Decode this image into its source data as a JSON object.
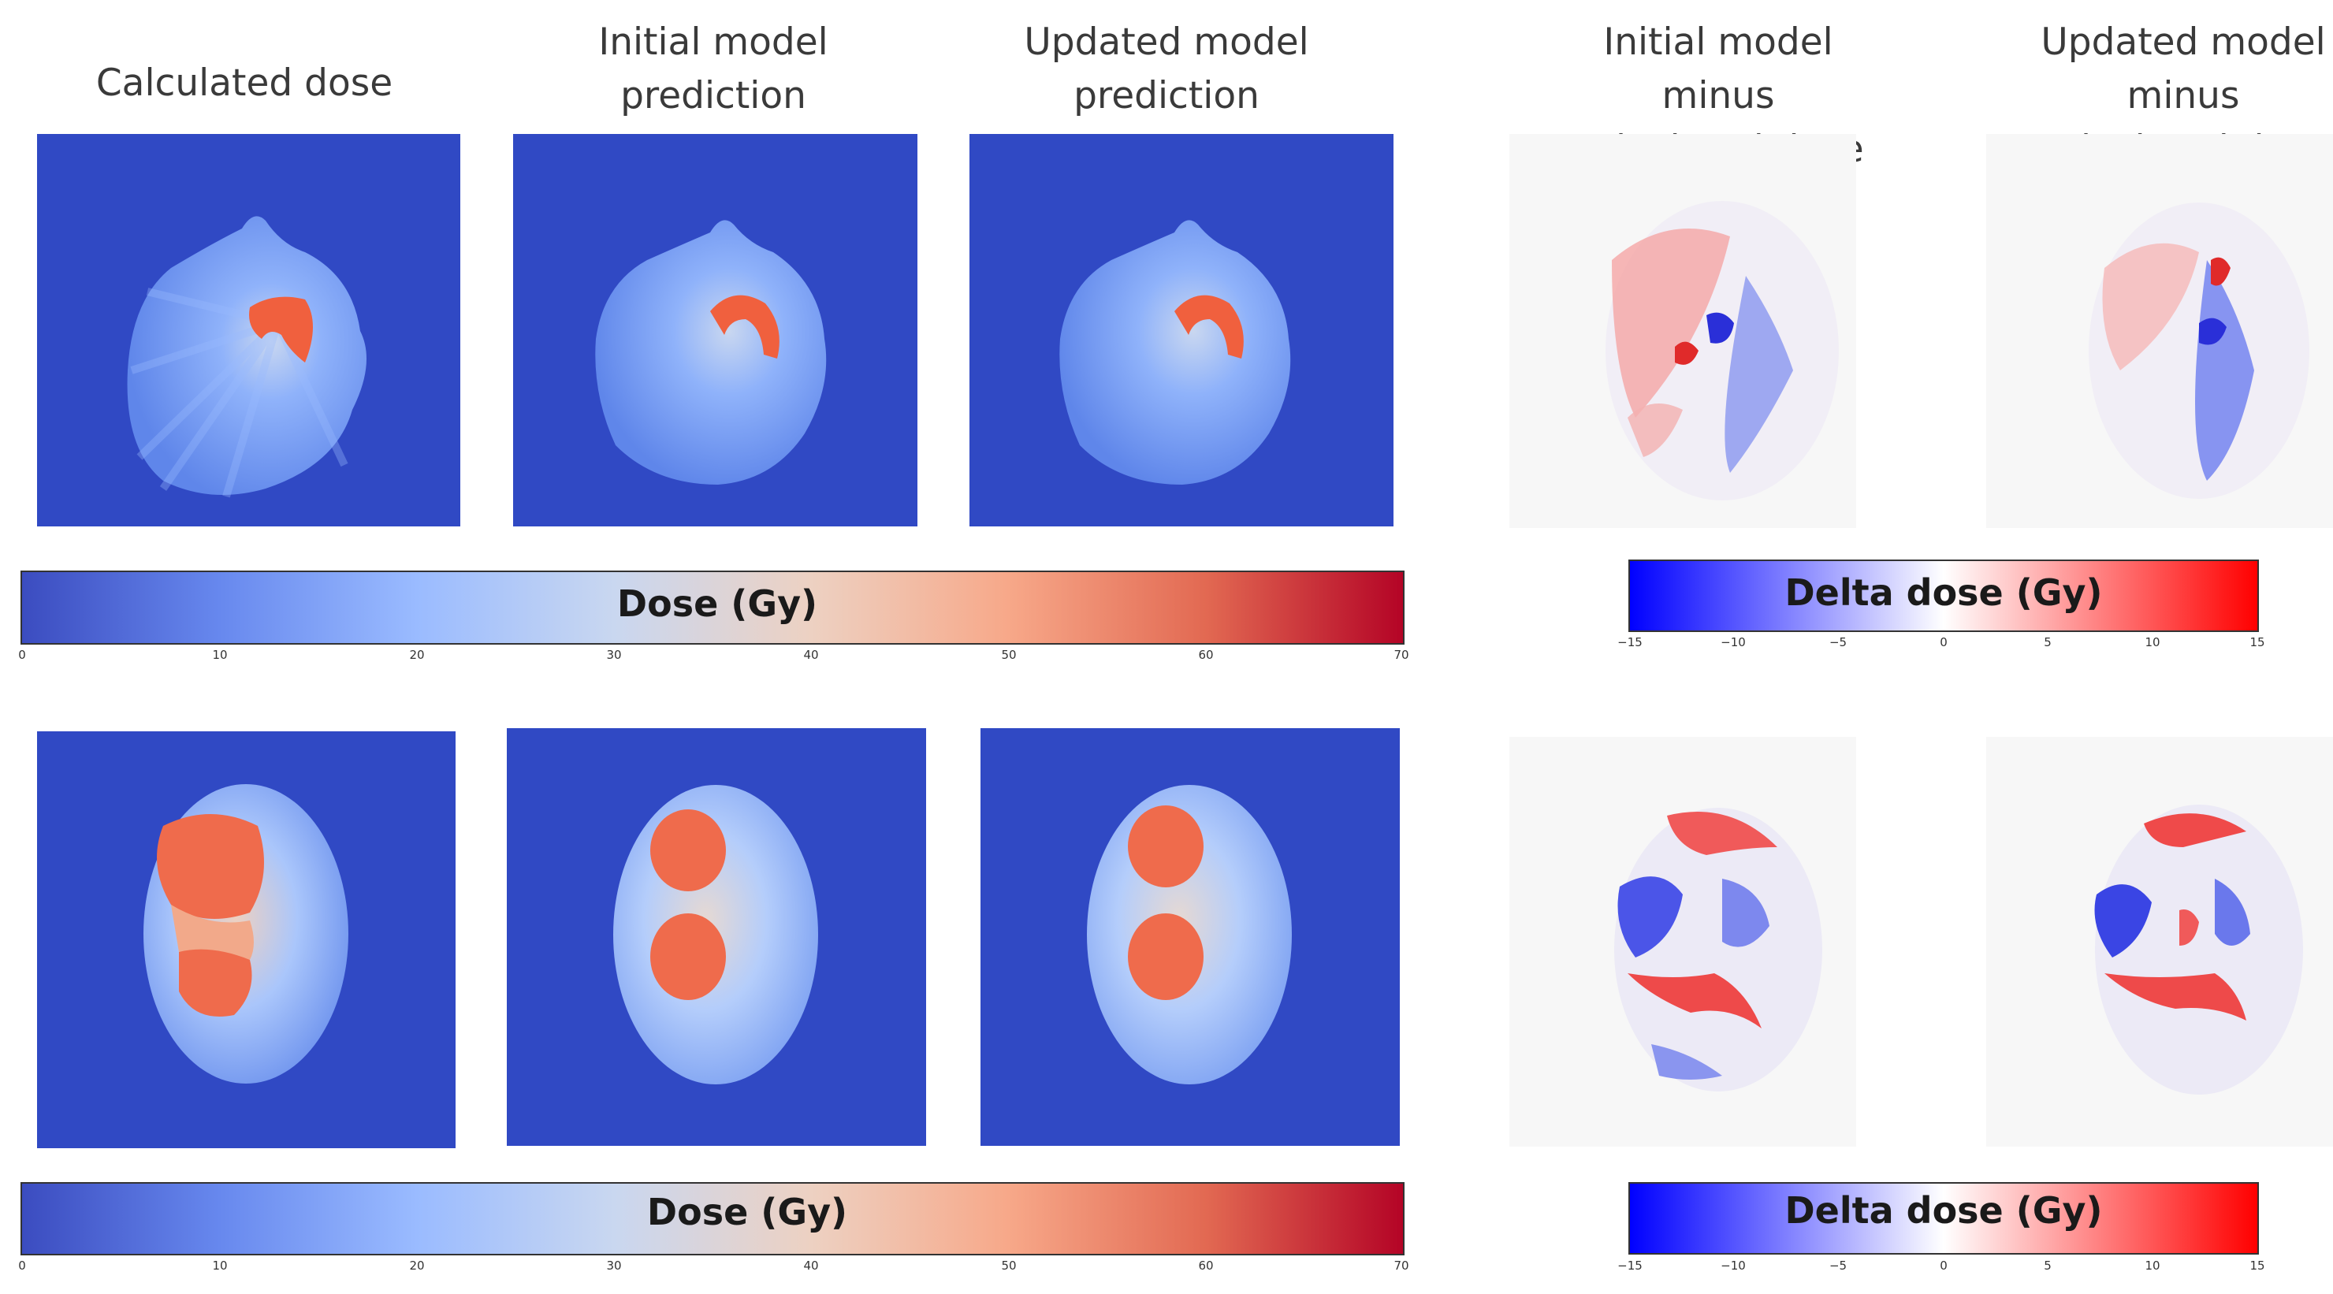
{
  "titles": {
    "calculated": "Calculated dose",
    "initial": "Initial model\nprediction",
    "updated": "Updated model\nprediction",
    "initial_minus": "Initial model\nminus\ncalculated dose",
    "updated_minus": "Updated model\nminus\ncalculated dose"
  },
  "dose_colorbar": {
    "label": "Dose (Gy)",
    "ticks": [
      "0",
      "10",
      "20",
      "30",
      "40",
      "50",
      "60",
      "70"
    ],
    "colors": [
      "#3b4cc0",
      "#6788ee",
      "#9abbff",
      "#c9d7f0",
      "#edd1c2",
      "#f7a889",
      "#e26952",
      "#b40426"
    ]
  },
  "delta_colorbar": {
    "label": "Delta dose (Gy)",
    "ticks": [
      "−15",
      "−10",
      "−5",
      "0",
      "5",
      "10",
      "15"
    ],
    "colors": [
      "#0000ff",
      "#ffffff",
      "#ff0000"
    ]
  },
  "colors": {
    "background_blue": "#3049c4",
    "hot": "#f0603e"
  }
}
